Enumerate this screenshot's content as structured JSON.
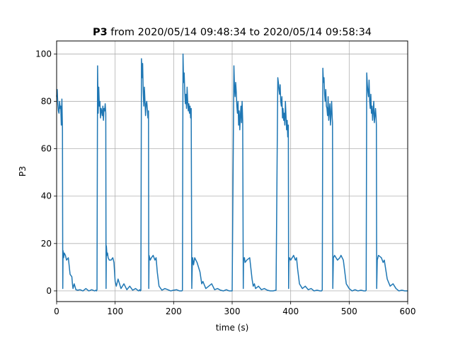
{
  "chart_data": {
    "type": "line",
    "title_bold": "P3",
    "title_rest": " from 2020/05/14 09:48:34 to 2020/05/14 09:58:34",
    "xlabel": "time (s)",
    "ylabel": "P3",
    "xlim": [
      0,
      600
    ],
    "ylim": [
      -4.5,
      105.5
    ],
    "x_ticks": [
      0,
      100,
      200,
      300,
      400,
      500,
      600
    ],
    "y_ticks": [
      0,
      20,
      40,
      60,
      80,
      100
    ],
    "grid": true,
    "color": "#1f77b4",
    "series": [
      {
        "x": [
          0,
          1,
          2,
          3,
          4,
          5,
          6,
          7,
          8,
          9,
          10,
          10.5,
          11,
          12,
          13,
          15,
          17,
          20,
          23,
          26,
          27,
          28,
          30,
          33,
          36,
          40,
          45,
          50,
          55,
          60,
          65,
          67,
          68,
          69,
          70,
          71,
          72,
          73,
          74,
          75,
          76,
          77,
          78,
          79,
          80,
          81,
          82,
          83,
          84,
          84.5,
          85,
          86,
          87,
          88,
          90,
          93,
          96,
          98,
          100,
          102,
          105,
          110,
          115,
          120,
          125,
          130,
          135,
          140,
          142,
          143,
          144,
          145,
          146,
          147,
          148,
          149,
          150,
          151,
          152,
          153,
          154,
          155,
          156,
          157,
          157.5,
          158,
          159,
          160,
          162,
          165,
          168,
          170,
          172,
          175,
          180,
          185,
          190,
          195,
          200,
          205,
          210,
          214,
          215,
          216,
          217,
          218,
          219,
          220,
          221,
          222,
          223,
          224,
          225,
          226,
          227,
          228,
          229,
          230,
          231,
          232,
          232.5,
          233,
          234,
          236,
          240,
          245,
          248,
          250,
          255,
          260,
          265,
          270,
          275,
          280,
          285,
          290,
          295,
          300,
          303,
          304,
          305,
          306,
          307,
          308,
          309,
          310,
          311,
          312,
          313,
          314,
          315,
          316,
          317,
          318,
          319,
          319.5,
          320,
          321,
          322,
          325,
          330,
          334,
          336,
          338,
          340,
          345,
          350,
          355,
          360,
          365,
          370,
          375,
          378,
          379,
          380,
          381,
          382,
          383,
          384,
          385,
          386,
          387,
          388,
          389,
          390,
          391,
          392,
          393,
          394,
          395,
          396,
          396.5,
          397,
          398,
          400,
          405,
          408,
          410,
          412,
          415,
          420,
          425,
          430,
          435,
          440,
          445,
          450,
          453,
          454,
          455,
          456,
          457,
          458,
          459,
          460,
          461,
          462,
          463,
          464,
          465,
          466,
          467,
          468,
          469,
          470,
          471,
          471.5,
          472,
          473,
          475,
          480,
          484,
          486,
          490,
          495,
          500,
          505,
          510,
          515,
          520,
          525,
          528,
          529,
          530,
          531,
          532,
          533,
          534,
          535,
          536,
          537,
          538,
          539,
          540,
          541,
          542,
          543,
          544,
          545,
          546,
          546.5,
          547,
          548,
          550,
          555,
          558,
          560,
          565,
          570,
          575,
          580,
          585,
          590,
          595,
          600
        ],
        "y": [
          82,
          85,
          79,
          76,
          75,
          80,
          77,
          78,
          70,
          81,
          68,
          1,
          17,
          14,
          16,
          15,
          13,
          14,
          7,
          6,
          3,
          1,
          3,
          0.5,
          0.3,
          0.5,
          0,
          1,
          0,
          0.5,
          0,
          0.3,
          0,
          0.5,
          95,
          75,
          86,
          78,
          80,
          73,
          77,
          76,
          74,
          78,
          72,
          77,
          76,
          79,
          75,
          1,
          19,
          15,
          16,
          14,
          13,
          13,
          14,
          12,
          4,
          2,
          5,
          1,
          3,
          0.5,
          2,
          0.3,
          1,
          0,
          0.5,
          0,
          0.3,
          98,
          90,
          96,
          84,
          78,
          86,
          80,
          74,
          79,
          80,
          77,
          73,
          76,
          1,
          15,
          14,
          13,
          14,
          15,
          13,
          14,
          8,
          2,
          0.3,
          1,
          0.5,
          0,
          0.3,
          0.5,
          0,
          0,
          0.3,
          100,
          88,
          92,
          84,
          79,
          83,
          77,
          86,
          80,
          76,
          79,
          75,
          78,
          73,
          77,
          1,
          13,
          14,
          13,
          11,
          14,
          12,
          8,
          3,
          4,
          1,
          2,
          3,
          0.5,
          1,
          0.3,
          0,
          0.5,
          0,
          0,
          95,
          86,
          82,
          88,
          84,
          78,
          75,
          80,
          70,
          76,
          68,
          74,
          78,
          71,
          80,
          72,
          1,
          14,
          13,
          14,
          12,
          13,
          14,
          5,
          2,
          3,
          1,
          2,
          0.5,
          1,
          0.3,
          0,
          0,
          0.3,
          90,
          88,
          85,
          83,
          87,
          80,
          78,
          82,
          73,
          77,
          72,
          75,
          70,
          80,
          74,
          68,
          72,
          65,
          70,
          1,
          12,
          14,
          13,
          15,
          13,
          14,
          9,
          3,
          1,
          2,
          0.5,
          1,
          0,
          0.3,
          0,
          0,
          0.5,
          94,
          88,
          90,
          83,
          80,
          85,
          78,
          77,
          74,
          82,
          72,
          76,
          79,
          70,
          75,
          80,
          73,
          71,
          1,
          14,
          15,
          13,
          14,
          15,
          13,
          3,
          1,
          0,
          0.5,
          0,
          0.3,
          0,
          0,
          0.3,
          92,
          87,
          84,
          82,
          89,
          80,
          77,
          83,
          75,
          78,
          72,
          76,
          80,
          71,
          74,
          77,
          73,
          70,
          1,
          13,
          15,
          14,
          12,
          13,
          5,
          2,
          3,
          1,
          0,
          0.3,
          0,
          0
        ]
      }
    ]
  }
}
